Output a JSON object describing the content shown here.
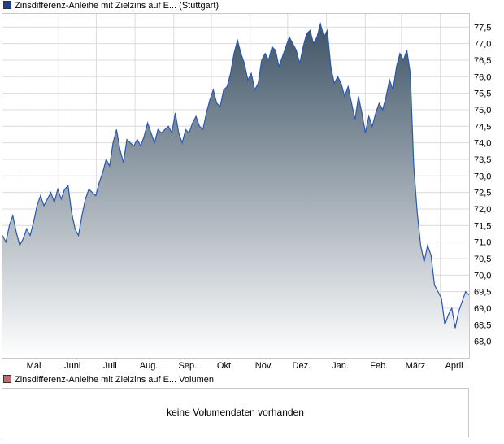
{
  "legend": {
    "price_label": "Zinsdifferenz-Anleihe mit Zielzins auf E... (Stuttgart)",
    "price_color": "#1f3f8f",
    "volume_label": "Zinsdifferenz-Anleihe mit Zielzins auf E... Volumen",
    "volume_color": "#c8686f"
  },
  "volume_panel": {
    "message": "keine Volumendaten vorhanden"
  },
  "colors": {
    "line": "#2a58b3",
    "fill_top": "#3f5466",
    "fill_bottom": "#ffffff",
    "grid": "#dcdcdc",
    "border": "#c8c8c8"
  },
  "chart_data": {
    "type": "area",
    "title": "",
    "xlabel": "",
    "ylabel": "",
    "ylim": [
      67.5,
      77.9
    ],
    "grid": true,
    "y_axis_side": "right",
    "y_ticks": [
      68.0,
      68.5,
      69.0,
      69.5,
      70.0,
      70.5,
      71.0,
      71.5,
      72.0,
      72.5,
      73.0,
      73.5,
      74.0,
      74.5,
      75.0,
      75.5,
      76.0,
      76.5,
      77.0,
      77.5
    ],
    "y_tick_labels": [
      "68,0",
      "68,5",
      "69,0",
      "69,5",
      "70,0",
      "70,5",
      "71,0",
      "71,5",
      "72,0",
      "72,5",
      "73,0",
      "73,5",
      "74,0",
      "74,5",
      "75,0",
      "75,5",
      "76,0",
      "76,5",
      "77,0",
      "77,5"
    ],
    "x_tick_labels": [
      "Mai",
      "Juni",
      "Juli",
      "Aug.",
      "Sep.",
      "Okt.",
      "Nov.",
      "Dez.",
      "Jan.",
      "Feb.",
      "März",
      "April"
    ],
    "series": [
      {
        "values": [
          71.2,
          71.0,
          71.5,
          71.8,
          71.3,
          70.9,
          71.1,
          71.4,
          71.2,
          71.6,
          72.1,
          72.4,
          72.1,
          72.3,
          72.5,
          72.2,
          72.6,
          72.3,
          72.6,
          72.7,
          71.9,
          71.4,
          71.2,
          71.8,
          72.3,
          72.6,
          72.5,
          72.4,
          72.8,
          73.1,
          73.5,
          73.3,
          74.0,
          74.4,
          73.8,
          73.4,
          74.1,
          74.0,
          73.9,
          74.1,
          73.9,
          74.2,
          74.6,
          74.3,
          74.0,
          74.4,
          74.3,
          74.4,
          74.5,
          74.3,
          74.9,
          74.3,
          74.0,
          74.4,
          74.3,
          74.6,
          74.8,
          74.5,
          74.4,
          74.9,
          75.3,
          75.6,
          75.2,
          75.1,
          75.6,
          75.7,
          76.1,
          76.7,
          77.1,
          76.7,
          76.4,
          75.9,
          76.1,
          75.6,
          75.8,
          76.5,
          76.7,
          76.5,
          76.9,
          76.8,
          76.3,
          76.6,
          76.9,
          77.2,
          77.0,
          76.8,
          76.4,
          76.9,
          77.3,
          77.4,
          77.0,
          77.2,
          77.6,
          77.2,
          77.4,
          76.3,
          75.8,
          76.0,
          75.8,
          75.4,
          75.7,
          75.2,
          74.7,
          75.4,
          74.9,
          74.3,
          74.8,
          74.5,
          74.9,
          75.2,
          75.0,
          75.4,
          75.9,
          75.6,
          76.3,
          76.7,
          76.5,
          76.8,
          76.1,
          73.3,
          71.9,
          70.9,
          70.4,
          70.9,
          70.6,
          69.7,
          69.5,
          69.3,
          68.5,
          68.8,
          69.0,
          68.4,
          68.9,
          69.2,
          69.5,
          69.4
        ],
        "x_start": "2023-04-17",
        "x_end": "2024-04-24"
      }
    ]
  }
}
